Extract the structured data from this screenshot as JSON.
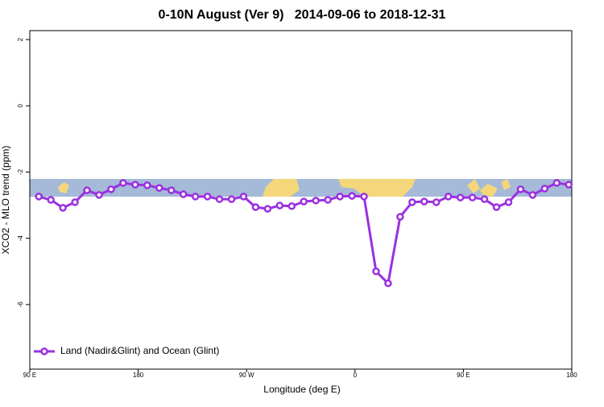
{
  "chart_data": {
    "type": "line",
    "title": "0-10N August (Ver 9)   2014-09-06 to 2018-12-31",
    "x_label": "Longitude (deg E)",
    "y_label": "XCO2 - MLO trend (ppm)",
    "x": [
      97.5,
      107.5,
      117.5,
      127.5,
      137.5,
      147.5,
      157.5,
      167.5,
      177.5,
      187.5,
      197.5,
      207.5,
      217.5,
      227.5,
      237.5,
      247.5,
      257.5,
      267.5,
      277.5,
      287.5,
      297.5,
      307.5,
      317.5,
      327.5,
      337.5,
      347.5,
      357.5,
      367.5,
      377.5,
      387.5,
      397.5,
      407.5,
      417.5,
      427.5,
      437.5,
      447.5,
      457.5,
      467.5,
      477.5,
      487.5,
      497.5,
      507.5,
      517.5,
      527.5,
      537.5
    ],
    "series": [
      {
        "name": "Land (Nadir&Glint) and Ocean (Glint)",
        "color": "#9b30e0",
        "values": [
          -2.74,
          -2.84,
          -3.08,
          -2.91,
          -2.55,
          -2.69,
          -2.52,
          -2.33,
          -2.38,
          -2.4,
          -2.48,
          -2.55,
          -2.67,
          -2.74,
          -2.74,
          -2.82,
          -2.82,
          -2.74,
          -3.06,
          -3.11,
          -3.01,
          -3.03,
          -2.89,
          -2.86,
          -2.84,
          -2.74,
          -2.72,
          -2.74,
          -5.0,
          -5.36,
          -3.35,
          -2.91,
          -2.89,
          -2.91,
          -2.74,
          -2.77,
          -2.77,
          -2.82,
          -3.06,
          -2.91,
          -2.52,
          -2.69,
          -2.5,
          -2.33,
          -2.38
        ]
      }
    ],
    "xlim": [
      90,
      540
    ],
    "xticks": [
      {
        "value": 90,
        "label": "90 E"
      },
      180,
      {
        "value": 270,
        "label": "90 W"
      },
      {
        "value": 360,
        "label": "0"
      },
      {
        "value": 450,
        "label": "90 E"
      },
      {
        "value": 540,
        "label": "180"
      }
    ],
    "ylim": [
      -7.95,
      2.27
    ],
    "yticks": [
      2,
      0,
      -2,
      -4,
      -6
    ],
    "grid": false,
    "legend": "bottom-left"
  }
}
